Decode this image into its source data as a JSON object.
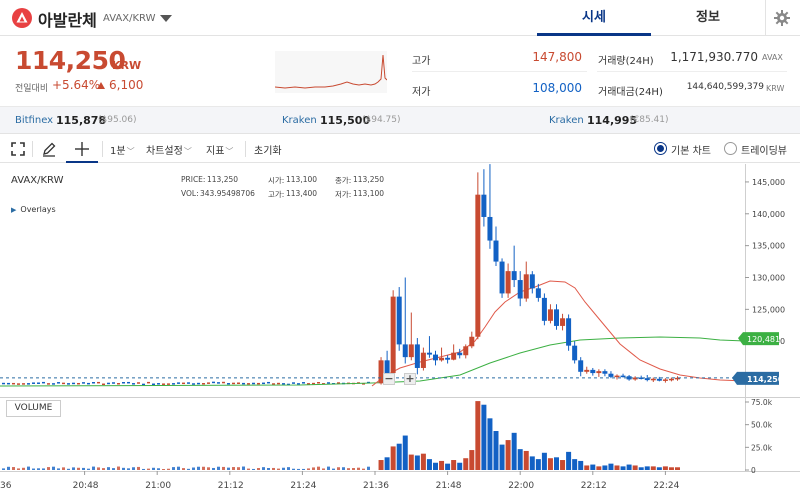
{
  "header": {
    "coin_name": "아발란체",
    "pair": "AVAX/KRW",
    "tabs": [
      {
        "label": "시세",
        "active": true
      },
      {
        "label": "정보",
        "active": false
      }
    ]
  },
  "summary": {
    "price": "114,250",
    "unit": "KRW",
    "change_label": "전일대비",
    "change_rate": "+5.64%",
    "change_value": "6,100",
    "high_label": "고가",
    "high_value": "147,800",
    "low_label": "저가",
    "low_value": "108,000",
    "volume_label": "거래량(24H)",
    "volume_value": "1,171,930.770",
    "volume_unit": "AVAX",
    "amount_label": "거래대금(24H)",
    "amount_value": "144,640,599,379",
    "amount_unit": "KRW"
  },
  "exchanges": [
    {
      "name": "Bitfinex",
      "price": "115,878",
      "sub": "($95.06)"
    },
    {
      "name": "Kraken",
      "price": "115,500",
      "sub": "($94.75)"
    },
    {
      "name": "Kraken",
      "price": "114,995",
      "sub": "(€85.41)"
    }
  ],
  "toolbar": {
    "interval": "1분",
    "chart_settings": "차트설정",
    "indicators": "지표",
    "reset": "초기화",
    "basic_chart": "기본 차트",
    "tradingview": "트레이딩뷰"
  },
  "chart_overlay": {
    "pair": "AVAX/KRW",
    "overlays_toggle": "Overlays",
    "price_label": "PRICE:",
    "price_value": "113,250",
    "vol_label": "VOL:",
    "vol_value": "343.95498706",
    "open_label": "시가:",
    "open_value": "113,100",
    "high_label": "고가:",
    "high_value": "113,400",
    "close_label": "종가:",
    "close_value": "113,250",
    "low_label": "저가:",
    "low_value": "113,100",
    "volume_pane": "VOLUME",
    "zoom_out": "−",
    "zoom_in": "+"
  },
  "colors": {
    "up": "#c84a31",
    "down": "#1261c4",
    "accent": "#093687",
    "ma_short": "#e05a4a",
    "ma_long": "#3cb043"
  },
  "chart_data": {
    "type": "candlestick",
    "title": "AVAX/KRW",
    "x_ticks": [
      "36",
      "20:48",
      "21:00",
      "21:12",
      "21:24",
      "21:36",
      "21:48",
      "22:00",
      "22:12",
      "22:24"
    ],
    "y_ticks": [
      "145,000",
      "140,000",
      "135,000",
      "130,000",
      "125,000",
      "120,000"
    ],
    "ylim": [
      112500,
      147500
    ],
    "volume_ticks": [
      "75.0k",
      "50.0k",
      "25.0k",
      "0"
    ],
    "volume_ylim": [
      0,
      75000
    ],
    "current_price_label": "114,250",
    "current_price": 114250,
    "ma_long_label": "120,481",
    "ma_long_value": 120481,
    "candles": [
      {
        "t": "21:37",
        "o": 113400,
        "h": 117500,
        "l": 113200,
        "c": 117000,
        "v": 11000
      },
      {
        "t": "21:38",
        "o": 117000,
        "h": 118500,
        "l": 114500,
        "c": 115000,
        "v": 14000
      },
      {
        "t": "21:39",
        "o": 115000,
        "h": 128000,
        "l": 114800,
        "c": 127000,
        "v": 26000
      },
      {
        "t": "21:40",
        "o": 127000,
        "h": 128500,
        "l": 118500,
        "c": 119500,
        "v": 29000
      },
      {
        "t": "21:41",
        "o": 119500,
        "h": 130000,
        "l": 116500,
        "c": 117500,
        "v": 38000
      },
      {
        "t": "21:42",
        "o": 117500,
        "h": 124500,
        "l": 117000,
        "c": 119500,
        "v": 17000
      },
      {
        "t": "21:43",
        "o": 119500,
        "h": 120500,
        "l": 114800,
        "c": 115800,
        "v": 16000
      },
      {
        "t": "21:44",
        "o": 115800,
        "h": 119000,
        "l": 115400,
        "c": 118200,
        "v": 18000
      },
      {
        "t": "21:45",
        "o": 118200,
        "h": 120800,
        "l": 117400,
        "c": 117900,
        "v": 12000
      },
      {
        "t": "21:46",
        "o": 117900,
        "h": 118500,
        "l": 116200,
        "c": 117000,
        "v": 8000
      },
      {
        "t": "21:47",
        "o": 117000,
        "h": 119000,
        "l": 116800,
        "c": 117400,
        "v": 10000
      },
      {
        "t": "21:48",
        "o": 117400,
        "h": 117800,
        "l": 116500,
        "c": 117100,
        "v": 7000
      },
      {
        "t": "21:49",
        "o": 117100,
        "h": 119500,
        "l": 117000,
        "c": 118200,
        "v": 11000
      },
      {
        "t": "21:50",
        "o": 118200,
        "h": 118800,
        "l": 117300,
        "c": 117800,
        "v": 8000
      },
      {
        "t": "21:51",
        "o": 117800,
        "h": 119500,
        "l": 117300,
        "c": 119200,
        "v": 13000
      },
      {
        "t": "21:52",
        "o": 119200,
        "h": 121500,
        "l": 118900,
        "c": 120700,
        "v": 22000
      },
      {
        "t": "21:53",
        "o": 120700,
        "h": 146500,
        "l": 120300,
        "c": 143000,
        "v": 76000
      },
      {
        "t": "21:54",
        "o": 143000,
        "h": 147000,
        "l": 138000,
        "c": 139500,
        "v": 72000
      },
      {
        "t": "21:55",
        "o": 139500,
        "h": 147800,
        "l": 134500,
        "c": 135800,
        "v": 57000
      },
      {
        "t": "21:56",
        "o": 135800,
        "h": 138000,
        "l": 131800,
        "c": 132500,
        "v": 43000
      },
      {
        "t": "21:57",
        "o": 132500,
        "h": 133000,
        "l": 126800,
        "c": 127500,
        "v": 28000
      },
      {
        "t": "21:58",
        "o": 127500,
        "h": 132200,
        "l": 126800,
        "c": 131000,
        "v": 33000
      },
      {
        "t": "21:59",
        "o": 131000,
        "h": 135000,
        "l": 128500,
        "c": 129600,
        "v": 41000
      },
      {
        "t": "22:00",
        "o": 129600,
        "h": 131000,
        "l": 125500,
        "c": 126700,
        "v": 23000
      },
      {
        "t": "22:01",
        "o": 126700,
        "h": 132500,
        "l": 126200,
        "c": 130500,
        "v": 21000
      },
      {
        "t": "22:02",
        "o": 130500,
        "h": 131000,
        "l": 127500,
        "c": 128300,
        "v": 15000
      },
      {
        "t": "22:03",
        "o": 128300,
        "h": 129000,
        "l": 126200,
        "c": 126800,
        "v": 12000
      },
      {
        "t": "22:04",
        "o": 126800,
        "h": 127500,
        "l": 122500,
        "c": 123200,
        "v": 19000
      },
      {
        "t": "22:05",
        "o": 123200,
        "h": 125800,
        "l": 122800,
        "c": 125000,
        "v": 13000
      },
      {
        "t": "22:06",
        "o": 125000,
        "h": 125800,
        "l": 121800,
        "c": 122400,
        "v": 14000
      },
      {
        "t": "22:07",
        "o": 122400,
        "h": 124300,
        "l": 121700,
        "c": 123600,
        "v": 11000
      },
      {
        "t": "22:08",
        "o": 123600,
        "h": 124200,
        "l": 118500,
        "c": 119300,
        "v": 20000
      },
      {
        "t": "22:09",
        "o": 119300,
        "h": 120000,
        "l": 116500,
        "c": 117000,
        "v": 12000
      },
      {
        "t": "22:10",
        "o": 117000,
        "h": 117500,
        "l": 114500,
        "c": 115200,
        "v": 10000
      },
      {
        "t": "22:11",
        "o": 115200,
        "h": 116000,
        "l": 114900,
        "c": 115500,
        "v": 5000
      },
      {
        "t": "22:12",
        "o": 115500,
        "h": 115800,
        "l": 114600,
        "c": 115000,
        "v": 6000
      },
      {
        "t": "22:13",
        "o": 115000,
        "h": 115600,
        "l": 114400,
        "c": 115300,
        "v": 4000
      },
      {
        "t": "22:14",
        "o": 115300,
        "h": 115600,
        "l": 114500,
        "c": 114900,
        "v": 5000
      },
      {
        "t": "22:15",
        "o": 114900,
        "h": 115300,
        "l": 114200,
        "c": 114400,
        "v": 7000
      },
      {
        "t": "22:16",
        "o": 114400,
        "h": 114800,
        "l": 114000,
        "c": 114600,
        "v": 5000
      },
      {
        "t": "22:17",
        "o": 114600,
        "h": 114900,
        "l": 114300,
        "c": 114500,
        "v": 4000
      },
      {
        "t": "22:18",
        "o": 114500,
        "h": 114700,
        "l": 113800,
        "c": 114000,
        "v": 6000
      },
      {
        "t": "22:19",
        "o": 114000,
        "h": 114500,
        "l": 113800,
        "c": 114300,
        "v": 5000
      },
      {
        "t": "22:20",
        "o": 114300,
        "h": 114600,
        "l": 114000,
        "c": 114200,
        "v": 3000
      },
      {
        "t": "22:21",
        "o": 114200,
        "h": 114700,
        "l": 113700,
        "c": 113900,
        "v": 4000
      },
      {
        "t": "22:22",
        "o": 113900,
        "h": 114300,
        "l": 113600,
        "c": 114100,
        "v": 4000
      },
      {
        "t": "22:23",
        "o": 114100,
        "h": 114400,
        "l": 113700,
        "c": 113800,
        "v": 3000
      },
      {
        "t": "22:24",
        "o": 113800,
        "h": 114200,
        "l": 113500,
        "c": 114000,
        "v": 4000
      },
      {
        "t": "22:25",
        "o": 114000,
        "h": 114300,
        "l": 113700,
        "c": 114100,
        "v": 3000
      },
      {
        "t": "22:26",
        "o": 114100,
        "h": 114500,
        "l": 113800,
        "c": 114250,
        "v": 3000
      }
    ]
  }
}
